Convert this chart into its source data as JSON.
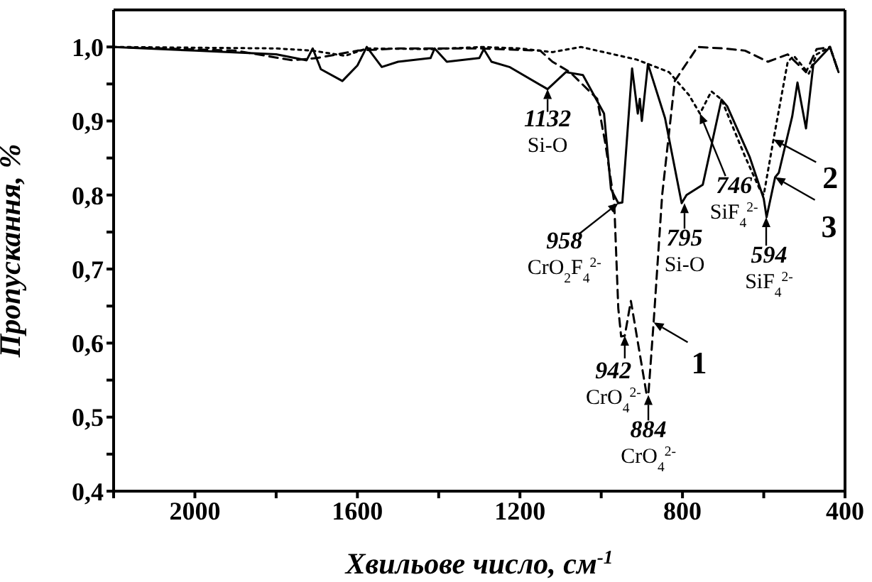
{
  "chart_data": {
    "type": "line",
    "xlabel": "Хвильове число, см$^{-1}$",
    "ylabel": "Пропускання, %",
    "xlim": [
      2200,
      400
    ],
    "xticks": [
      {
        "value": 2200,
        "label": null
      },
      2000,
      {
        "value": 1800,
        "label": null
      },
      1600,
      {
        "value": 1400,
        "label": null
      },
      1200,
      {
        "value": 1000,
        "label": null
      },
      800,
      {
        "value": 600,
        "label": null
      },
      400
    ],
    "ylim": [
      0.4,
      1.05
    ],
    "yticks": [
      {
        "value": 0.4,
        "label": "0,4"
      },
      {
        "value": 0.45,
        "label": null
      },
      {
        "value": 0.5,
        "label": "0,5"
      },
      {
        "value": 0.55,
        "label": null
      },
      {
        "value": 0.6,
        "label": "0,6"
      },
      {
        "value": 0.65,
        "label": null
      },
      {
        "value": 0.7,
        "label": "0,7"
      },
      {
        "value": 0.75,
        "label": null
      },
      {
        "value": 0.8,
        "label": "0,8"
      },
      {
        "value": 0.85,
        "label": null
      },
      {
        "value": 0.9,
        "label": "0,9"
      },
      {
        "value": 0.95,
        "label": null
      },
      {
        "value": 1.0,
        "label": "1,0"
      }
    ],
    "marker": "none",
    "series": [
      {
        "color": "#000000",
        "line_style": "dashed",
        "x": [
          2200,
          1900,
          1760,
          1700,
          1600,
          1500,
          1300,
          1150,
          1120,
          1077,
          1010,
          990,
          968,
          958,
          951,
          942,
          927,
          889,
          884,
          871,
          850,
          819,
          763,
          700,
          646,
          590,
          541,
          496,
          470,
          437,
          416
        ],
        "values": [
          1.0,
          0.995,
          0.982,
          0.985,
          0.995,
          0.998,
          0.998,
          0.995,
          0.98,
          0.966,
          0.93,
          0.87,
          0.79,
          0.647,
          0.609,
          0.61,
          0.657,
          0.533,
          0.53,
          0.628,
          0.8,
          0.954,
          1.0,
          0.998,
          0.995,
          0.98,
          0.99,
          0.966,
          0.997,
          1.0,
          0.966
        ]
      },
      {
        "color": "#000000",
        "line_style": "dotted",
        "x": [
          2200,
          1800,
          1710,
          1630,
          1577,
          1410,
          1296,
          1200,
          1120,
          1050,
          913,
          833,
          784,
          757,
          729,
          704,
          646,
          610,
          600,
          576,
          541,
          526,
          489,
          470,
          437,
          416
        ],
        "values": [
          1.0,
          0.998,
          0.995,
          0.988,
          0.998,
          0.997,
          1.0,
          0.998,
          0.993,
          1.0,
          0.983,
          0.966,
          0.935,
          0.91,
          0.94,
          0.929,
          0.852,
          0.808,
          0.8,
          0.875,
          0.98,
          0.988,
          0.964,
          0.99,
          1.0,
          0.966
        ]
      },
      {
        "color": "#000000",
        "line_style": "solid",
        "x": [
          2200,
          2000,
          1800,
          1725,
          1710,
          1690,
          1637,
          1600,
          1577,
          1540,
          1500,
          1420,
          1410,
          1380,
          1300,
          1289,
          1270,
          1226,
          1132,
          1087,
          1045,
          993,
          976,
          958,
          948,
          924,
          910,
          905,
          900,
          885,
          843,
          802,
          790,
          750,
          704,
          690,
          635,
          600,
          593,
          572,
          563,
          530,
          517,
          496,
          478,
          437,
          416
        ],
        "values": [
          1.0,
          0.995,
          0.99,
          0.982,
          0.998,
          0.97,
          0.954,
          0.975,
          1.0,
          0.973,
          0.98,
          0.985,
          0.998,
          0.98,
          0.985,
          0.997,
          0.98,
          0.973,
          0.943,
          0.966,
          0.962,
          0.91,
          0.808,
          0.789,
          0.79,
          0.971,
          0.91,
          0.93,
          0.9,
          0.977,
          0.904,
          0.789,
          0.8,
          0.814,
          0.929,
          0.92,
          0.852,
          0.795,
          0.77,
          0.824,
          0.83,
          0.906,
          0.952,
          0.89,
          0.976,
          1.0,
          0.966
        ]
      }
    ],
    "annotations": [
      {
        "text": "1132\nSi-O",
        "x": 1132,
        "y": 0.943
      },
      {
        "text": "958\nCrO$_{2}$F$_{4}$$^{2-}$",
        "x": 958,
        "y": 0.789
      },
      {
        "text": "942\nCrO$_{4}$$^{2-}$",
        "x": 942,
        "y": 0.61
      },
      {
        "text": "884\nCrO$_{4}$$^{2-}$",
        "x": 884,
        "y": 0.53
      },
      {
        "text": "795\nSi-O",
        "x": 795,
        "y": 0.789
      },
      {
        "text": "746\nSiF$_{4}$$^{2-}$",
        "x": 757,
        "y": 0.91
      },
      {
        "text": "594\nSiF$_{4}$$^{2-}$",
        "x": 594,
        "y": 0.77
      },
      {
        "text": "1",
        "x": 871,
        "y": 0.628
      },
      {
        "text": "2",
        "x": 576,
        "y": 0.875
      },
      {
        "text": "3",
        "x": 572,
        "y": 0.824
      }
    ]
  }
}
